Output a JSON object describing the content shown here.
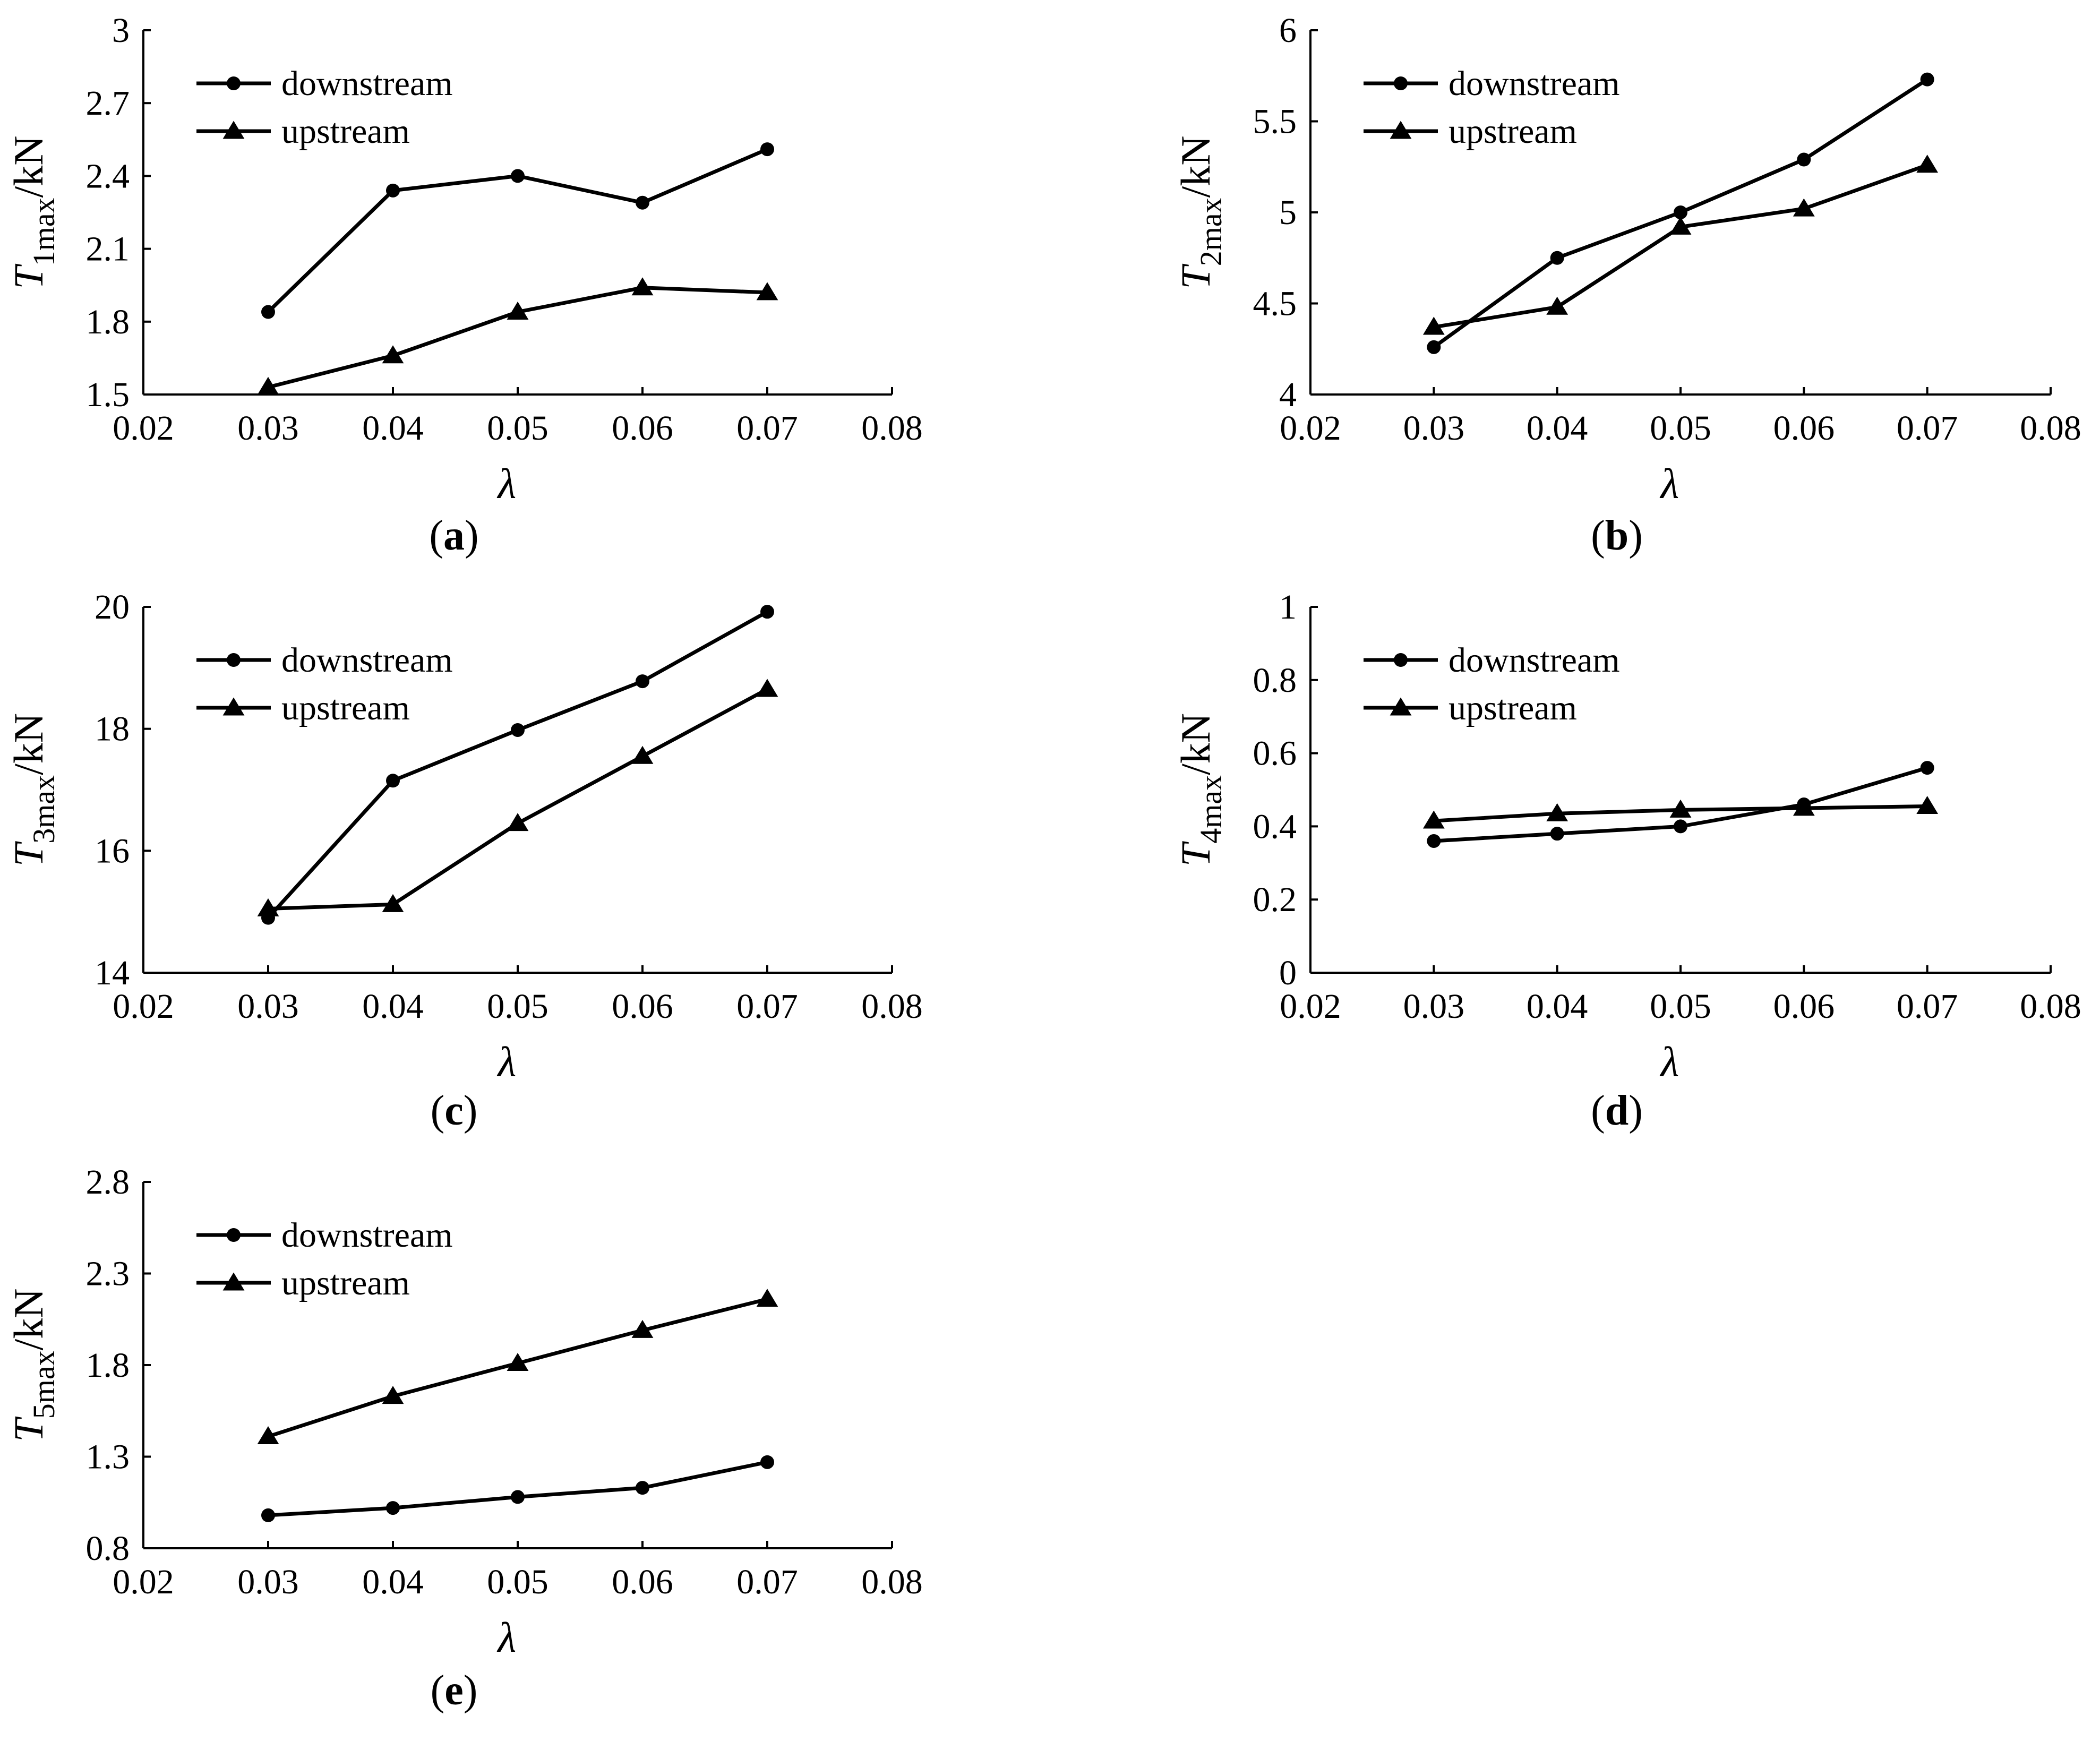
{
  "chart_data": [
    {
      "type": "line",
      "panel": "a",
      "xlabel": "λ",
      "ylabel": {
        "var": "T",
        "sub": "1max",
        "unit": "/kN"
      },
      "xlim": [
        0.02,
        0.08
      ],
      "ylim": [
        1.5,
        3.0
      ],
      "x_ticks": [
        "0.02",
        "0.03",
        "0.04",
        "0.05",
        "0.06",
        "0.07",
        "0.08"
      ],
      "y_ticks": [
        "1.5",
        "1.8",
        "2.1",
        "2.4",
        "2.7",
        "3"
      ],
      "legend_position": "top-left",
      "x": [
        0.03,
        0.04,
        0.05,
        0.06,
        0.07
      ],
      "series": [
        {
          "name": "downstream",
          "marker": "circle",
          "values": [
            1.84,
            2.34,
            2.4,
            2.29,
            2.51
          ]
        },
        {
          "name": "upstream",
          "marker": "triangle",
          "values": [
            1.53,
            1.66,
            1.84,
            1.94,
            1.92
          ]
        }
      ]
    },
    {
      "type": "line",
      "panel": "b",
      "xlabel": "λ",
      "ylabel": {
        "var": "T",
        "sub": "2max",
        "unit": "/kN"
      },
      "xlim": [
        0.02,
        0.08
      ],
      "ylim": [
        4.0,
        6.0
      ],
      "x_ticks": [
        "0.02",
        "0.03",
        "0.04",
        "0.05",
        "0.06",
        "0.07",
        "0.08"
      ],
      "y_ticks": [
        "4",
        "4.5",
        "5",
        "5.5",
        "6"
      ],
      "legend_position": "top-left",
      "x": [
        0.03,
        0.04,
        0.05,
        0.06,
        0.07
      ],
      "series": [
        {
          "name": "downstream",
          "marker": "circle",
          "values": [
            4.26,
            4.75,
            5.0,
            5.29,
            5.73
          ]
        },
        {
          "name": "upstream",
          "marker": "triangle",
          "values": [
            4.37,
            4.48,
            4.92,
            5.02,
            5.26
          ]
        }
      ]
    },
    {
      "type": "line",
      "panel": "c",
      "xlabel": "λ",
      "ylabel": {
        "var": "T",
        "sub": "3max",
        "unit": "/kN"
      },
      "xlim": [
        0.02,
        0.08
      ],
      "ylim": [
        14,
        20
      ],
      "x_ticks": [
        "0.02",
        "0.03",
        "0.04",
        "0.05",
        "0.06",
        "0.07",
        "0.08"
      ],
      "y_ticks": [
        "14",
        "16",
        "18",
        "20"
      ],
      "legend_position": "top-left",
      "x": [
        0.03,
        0.04,
        0.05,
        0.06,
        0.07
      ],
      "series": [
        {
          "name": "downstream",
          "marker": "circle",
          "values": [
            14.9,
            17.15,
            17.98,
            18.78,
            19.92
          ]
        },
        {
          "name": "upstream",
          "marker": "triangle",
          "values": [
            15.05,
            15.12,
            16.45,
            17.55,
            18.65
          ]
        }
      ]
    },
    {
      "type": "line",
      "panel": "d",
      "xlabel": "λ",
      "ylabel": {
        "var": "T",
        "sub": "4max",
        "unit": "/kN"
      },
      "xlim": [
        0.02,
        0.08
      ],
      "ylim": [
        0,
        1
      ],
      "x_ticks": [
        "0.02",
        "0.03",
        "0.04",
        "0.05",
        "0.06",
        "0.07",
        "0.08"
      ],
      "y_ticks": [
        "0",
        "0.2",
        "0.4",
        "0.6",
        "0.8",
        "1"
      ],
      "legend_position": "top-left",
      "x": [
        0.03,
        0.04,
        0.05,
        0.06,
        0.07
      ],
      "series": [
        {
          "name": "downstream",
          "marker": "circle",
          "values": [
            0.36,
            0.38,
            0.4,
            0.46,
            0.56
          ]
        },
        {
          "name": "upstream",
          "marker": "triangle",
          "values": [
            0.415,
            0.435,
            0.445,
            0.45,
            0.455
          ]
        }
      ]
    },
    {
      "type": "line",
      "panel": "e",
      "xlabel": "λ",
      "ylabel": {
        "var": "T",
        "sub": "5max",
        "unit": "/kN"
      },
      "xlim": [
        0.02,
        0.08
      ],
      "ylim": [
        0.8,
        2.8
      ],
      "x_ticks": [
        "0.02",
        "0.03",
        "0.04",
        "0.05",
        "0.06",
        "0.07",
        "0.08"
      ],
      "y_ticks": [
        "0.8",
        "1.3",
        "1.8",
        "2.3",
        "2.8"
      ],
      "legend_position": "top-left",
      "x": [
        0.03,
        0.04,
        0.05,
        0.06,
        0.07
      ],
      "series": [
        {
          "name": "downstream",
          "marker": "circle",
          "values": [
            0.98,
            1.02,
            1.08,
            1.13,
            1.27
          ]
        },
        {
          "name": "upstream",
          "marker": "triangle",
          "values": [
            1.41,
            1.63,
            1.81,
            1.99,
            2.16
          ]
        }
      ]
    }
  ],
  "panel_captions": [
    "(a)",
    "(b)",
    "(c)",
    "(d)",
    "(e)"
  ]
}
